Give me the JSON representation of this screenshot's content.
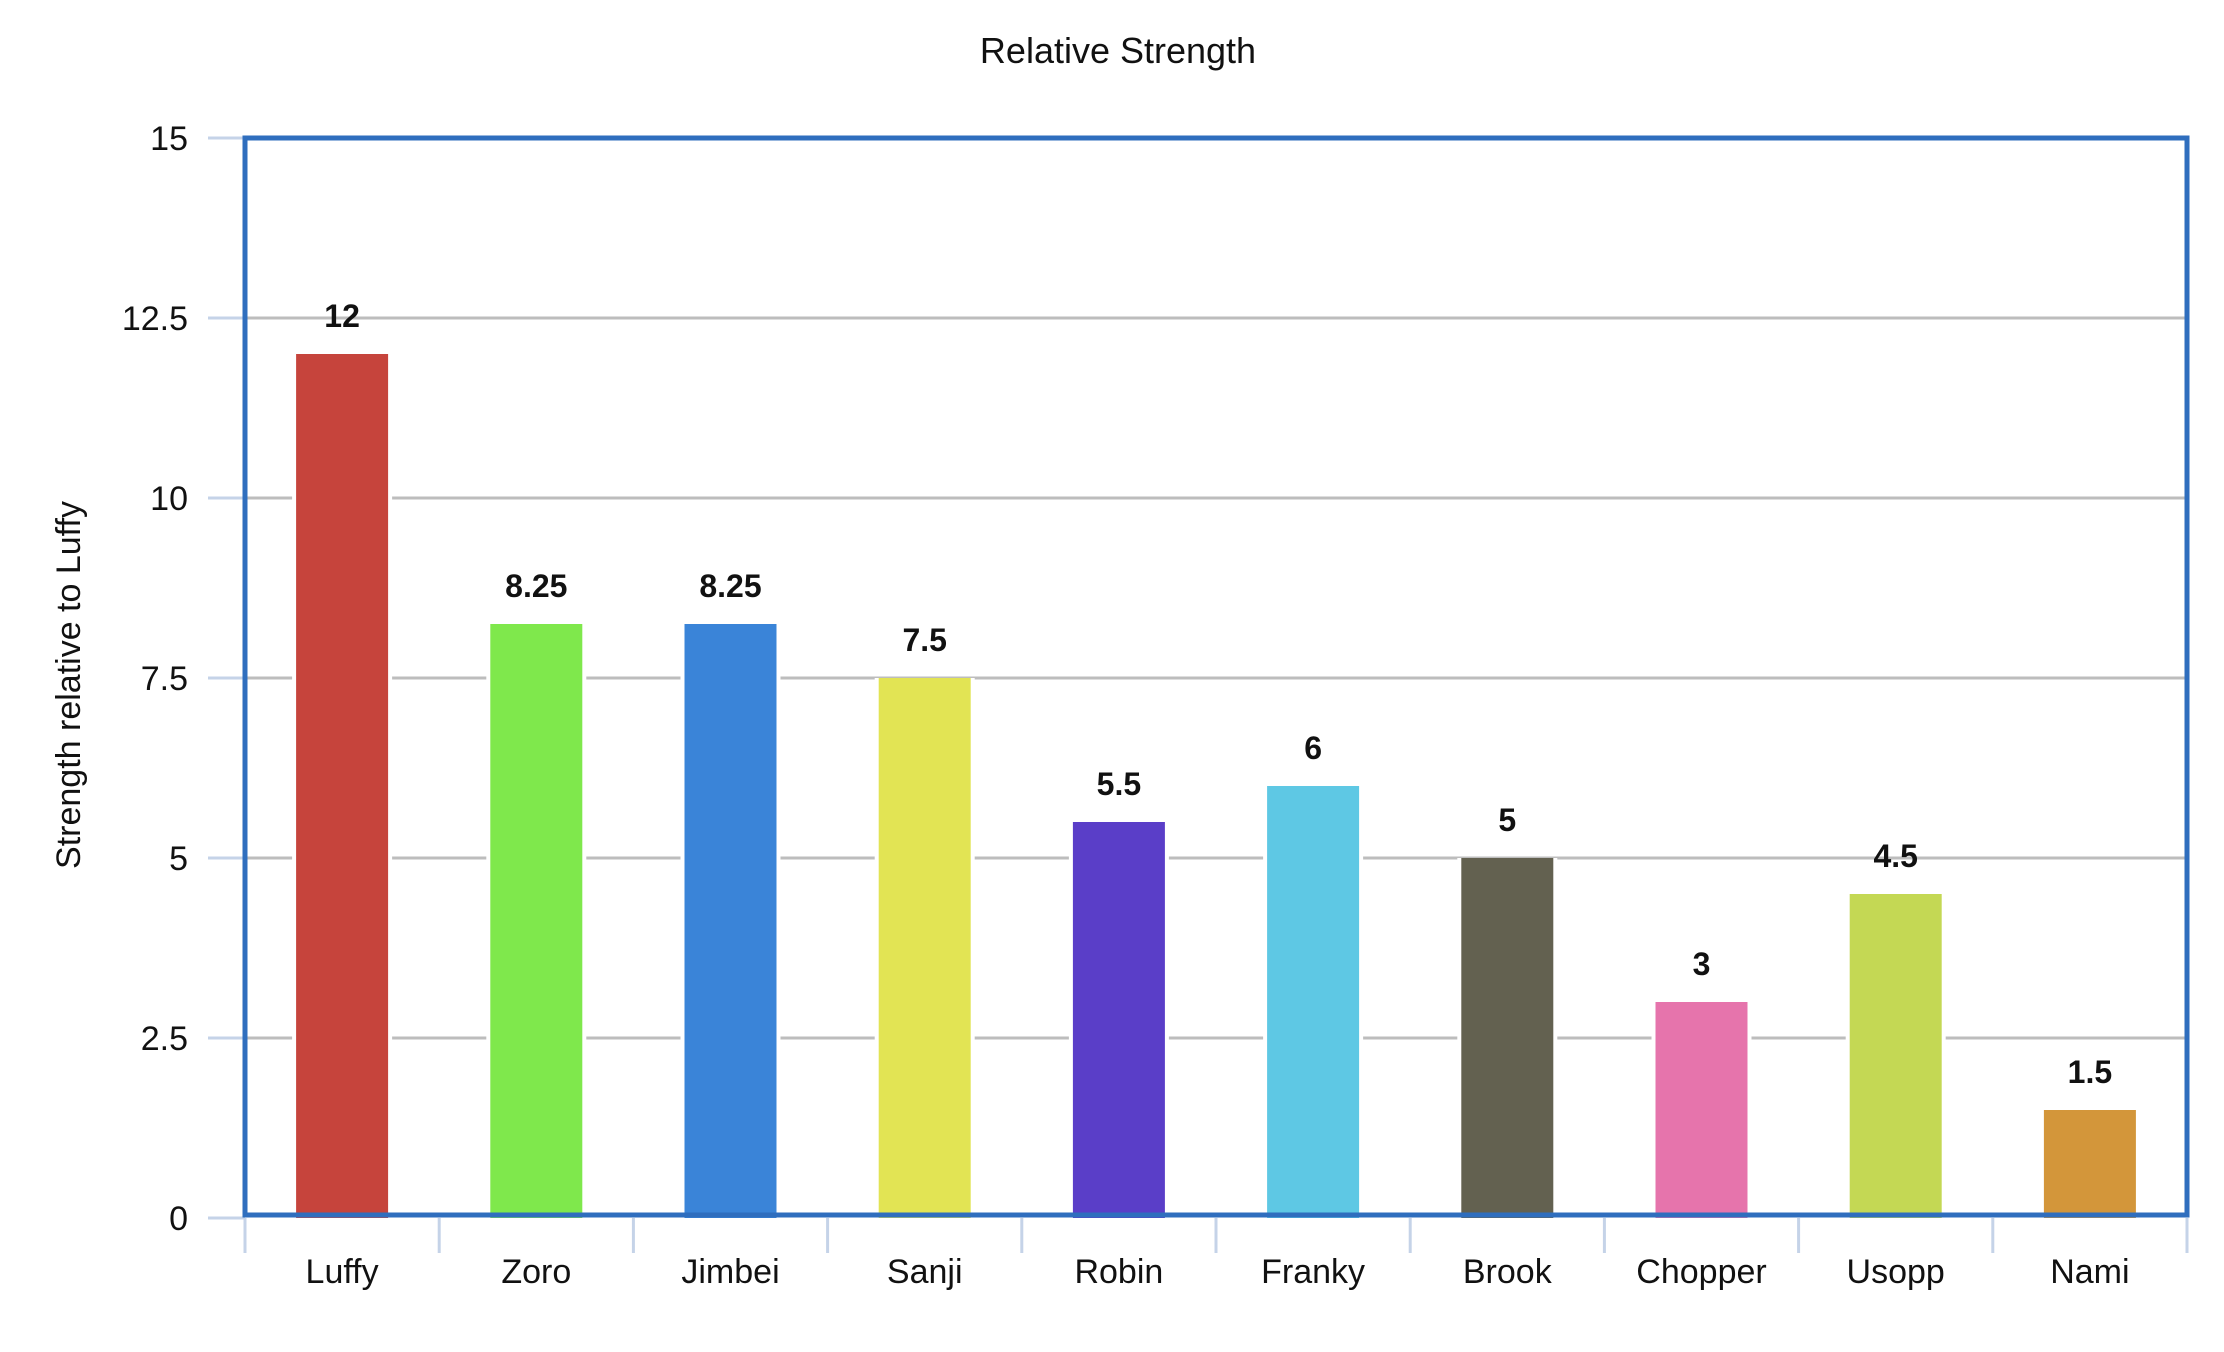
{
  "chart_data": {
    "type": "bar",
    "title": "Relative Strength",
    "xlabel": "",
    "ylabel": "Strength relative to Luffy",
    "ylim": [
      0,
      15
    ],
    "yticks": [
      0,
      2.5,
      5,
      7.5,
      10,
      12.5,
      15
    ],
    "ytick_labels": [
      "0",
      "2.5",
      "5",
      "7.5",
      "10",
      "12.5",
      "15"
    ],
    "grid": true,
    "legend": null,
    "categories": [
      "Luffy",
      "Zoro",
      "Jimbei",
      "Sanji",
      "Robin",
      "Franky",
      "Brook",
      "Chopper",
      "Usopp",
      "Nami"
    ],
    "values": [
      12,
      8.25,
      8.25,
      7.5,
      5.5,
      6,
      5,
      3,
      4.5,
      1.5
    ],
    "value_labels": [
      "12",
      "8.25",
      "8.25",
      "7.5",
      "5.5",
      "6",
      "5",
      "3",
      "4.5",
      "1.5"
    ],
    "colors": [
      "#C6443C",
      "#7FE84C",
      "#3A84D8",
      "#E2E454",
      "#5A3EC8",
      "#5EC8E4",
      "#636150",
      "#E674AC",
      "#C4D854",
      "#D3963A"
    ]
  },
  "style": {
    "border_color": "#2F6EBE",
    "grid_color": "#BDBDBD",
    "tick_color": "#C5D3E8"
  }
}
